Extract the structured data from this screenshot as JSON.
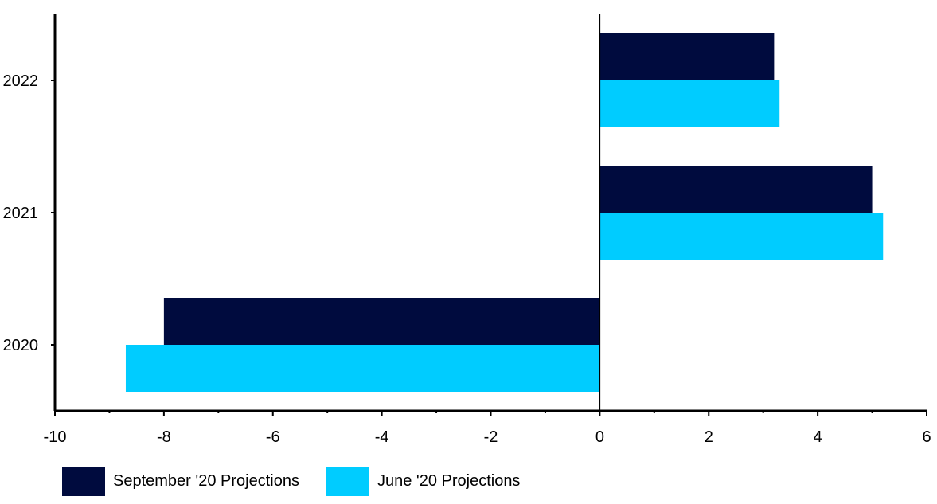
{
  "chart_data": {
    "type": "bar",
    "orientation": "horizontal",
    "categories": [
      "2020",
      "2021",
      "2022"
    ],
    "series": [
      {
        "name": "September '20 Projections",
        "color": "#000b3e",
        "values": [
          -8.0,
          5.0,
          3.2
        ]
      },
      {
        "name": "June '20 Projections",
        "color": "#00ccff",
        "values": [
          -8.7,
          5.2,
          3.3
        ]
      }
    ],
    "xlim": [
      -10,
      6
    ],
    "xticks": [
      "-10",
      "-8",
      "-6",
      "-4",
      "-2",
      "0",
      "2",
      "4",
      "6"
    ],
    "title": "",
    "xlabel": "",
    "ylabel": "",
    "grid": false,
    "legend_position": "bottom-left"
  }
}
